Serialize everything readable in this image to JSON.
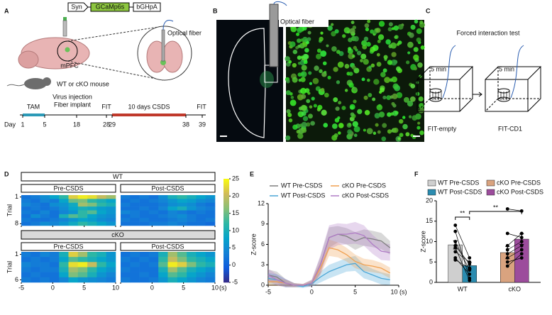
{
  "panel_labels": [
    "A",
    "B",
    "C",
    "D",
    "E",
    "F"
  ],
  "panel_a": {
    "construct": [
      "Syn",
      "GCaMp6s",
      "bGHpA"
    ],
    "fiber": "Optical fiber",
    "region": "mPFC",
    "mouse": "WT or cKO mouse",
    "procedures": [
      "Virus injection",
      "Fiber implant"
    ],
    "timeline": {
      "day_label": "Day",
      "days": [
        "1",
        "5",
        "18",
        "28",
        "29",
        "38",
        "39"
      ],
      "events": [
        "TAM",
        "FIT",
        "10 days CSDS",
        "FIT"
      ]
    }
  },
  "panel_b": {
    "fiber": "Optical fiber"
  },
  "panel_c": {
    "title": "Forced interaction test",
    "durations": [
      "5 min",
      "5 min"
    ],
    "conditions": [
      "FIT-empty",
      "FIT-CD1"
    ]
  },
  "chart_data": [
    {
      "type": "heatmap",
      "ylabel": "Trial",
      "xlim": [
        -5,
        10
      ],
      "xticks": [
        -5,
        0,
        5,
        10
      ],
      "xunit": "(s)",
      "clim": [
        -5,
        25
      ],
      "cticks": [
        -5,
        0,
        5,
        10,
        15,
        20,
        25
      ],
      "colormap": [
        "#352a87",
        "#0f5cdd",
        "#1481d6",
        "#06a4ca",
        "#2eb7a4",
        "#87bf77",
        "#d1bb59",
        "#f9fb0e"
      ],
      "groups": [
        {
          "name": "WT",
          "row_ticks": [
            1,
            8
          ],
          "panels": [
            {
              "name": "Pre-CSDS",
              "values": [
                [
                  2,
                  3,
                  5,
                  8,
                  12,
                  22,
                  24,
                  23,
                  20,
                  18
                ],
                [
                  3,
                  2,
                  4,
                  3,
                  8,
                  15,
                  16,
                  12,
                  10,
                  8
                ],
                [
                  4,
                  3,
                  2,
                  5,
                  6,
                  9,
                  18,
                  16,
                  12,
                  10
                ],
                [
                  2,
                  3,
                  2,
                  3,
                  5,
                  8,
                  10,
                  9,
                  7,
                  6
                ],
                [
                  3,
                  2,
                  4,
                  2,
                  4,
                  6,
                  12,
                  14,
                  8,
                  6
                ],
                [
                  2,
                  5,
                  3,
                  2,
                  10,
                  14,
                  12,
                  8,
                  6,
                  5
                ],
                [
                  3,
                  2,
                  2,
                  3,
                  4,
                  6,
                  8,
                  7,
                  5,
                  4
                ],
                [
                  2,
                  3,
                  5,
                  4,
                  6,
                  9,
                  12,
                  10,
                  8,
                  6
                ]
              ]
            },
            {
              "name": "Post-CSDS",
              "values": [
                [
                  3,
                  2,
                  3,
                  2,
                  5,
                  10,
                  12,
                  10,
                  8,
                  6
                ],
                [
                  2,
                  3,
                  2,
                  3,
                  4,
                  6,
                  8,
                  7,
                  5,
                  4
                ],
                [
                  3,
                  2,
                  2,
                  2,
                  3,
                  5,
                  6,
                  5,
                  3,
                  2
                ],
                [
                  2,
                  2,
                  3,
                  2,
                  4,
                  8,
                  10,
                  6,
                  4,
                  3
                ],
                [
                  4,
                  3,
                  2,
                  3,
                  2,
                  4,
                  3,
                  2,
                  3,
                  2
                ],
                [
                  2,
                  3,
                  2,
                  2,
                  3,
                  4,
                  5,
                  3,
                  2,
                  2
                ],
                [
                  3,
                  2,
                  3,
                  2,
                  2,
                  3,
                  4,
                  3,
                  2,
                  3
                ],
                [
                  2,
                  2,
                  2,
                  3,
                  3,
                  4,
                  3,
                  2,
                  2,
                  1
                ]
              ]
            }
          ]
        },
        {
          "name": "cKO",
          "row_ticks": [
            1,
            6
          ],
          "panels": [
            {
              "name": "Pre-CSDS",
              "values": [
                [
                  3,
                  2,
                  4,
                  3,
                  10,
                  22,
                  18,
                  12,
                  10,
                  6
                ],
                [
                  2,
                  3,
                  2,
                  3,
                  8,
                  14,
                  12,
                  10,
                  8,
                  6
                ],
                [
                  4,
                  3,
                  3,
                  2,
                  12,
                  23,
                  24,
                  20,
                  12,
                  8
                ],
                [
                  3,
                  2,
                  3,
                  3,
                  10,
                  18,
                  16,
                  12,
                  8,
                  6
                ],
                [
                  2,
                  3,
                  2,
                  2,
                  8,
                  16,
                  14,
                  10,
                  6,
                  4
                ],
                [
                  3,
                  2,
                  3,
                  2,
                  4,
                  8,
                  6,
                  5,
                  4,
                  3
                ]
              ]
            },
            {
              "name": "Post-CSDS",
              "values": [
                [
                  2,
                  3,
                  2,
                  3,
                  10,
                  18,
                  14,
                  10,
                  8,
                  6
                ],
                [
                  3,
                  2,
                  3,
                  2,
                  12,
                  20,
                  16,
                  12,
                  10,
                  8
                ],
                [
                  2,
                  3,
                  2,
                  3,
                  14,
                  24,
                  22,
                  16,
                  12,
                  10
                ],
                [
                  3,
                  2,
                  2,
                  2,
                  10,
                  18,
                  14,
                  10,
                  8,
                  6
                ],
                [
                  2,
                  2,
                  3,
                  2,
                  8,
                  14,
                  12,
                  8,
                  6,
                  4
                ],
                [
                  3,
                  2,
                  2,
                  3,
                  6,
                  10,
                  8,
                  6,
                  4,
                  3
                ]
              ]
            }
          ]
        }
      ]
    },
    {
      "type": "line",
      "ylabel": "Z-score",
      "x": [
        -5,
        -4,
        -3,
        -2,
        -1,
        0,
        1,
        2,
        3,
        4,
        5,
        6,
        7,
        8,
        9
      ],
      "xlim": [
        -5,
        10
      ],
      "xticks": [
        -5,
        0,
        5,
        {
          "value": 10,
          "label": "10 (s)"
        }
      ],
      "ylim": [
        0,
        12
      ],
      "yticks": [
        0,
        3,
        6,
        9,
        12
      ],
      "series": [
        {
          "name": "WT Pre-CSDS",
          "color": "#7f7f7f",
          "values": [
            1.5,
            1.2,
            0.3,
            0,
            0,
            0.3,
            3,
            7,
            7.5,
            7.2,
            6.5,
            7,
            6.8,
            6.5,
            5.5
          ],
          "error": [
            0.8,
            0.8,
            0.6,
            0.3,
            0.2,
            0.5,
            1.2,
            1.5,
            1.2,
            1.2,
            1.3,
            1.2,
            1.2,
            1.2,
            1.0
          ]
        },
        {
          "name": "WT Post-CSDS",
          "color": "#4aa6d6",
          "values": [
            1.0,
            0.8,
            0.3,
            0,
            -0.2,
            0.2,
            1.2,
            2,
            2.5,
            3,
            3.2,
            2,
            1.5,
            1,
            0.8
          ],
          "error": [
            0.8,
            0.8,
            0.6,
            0.3,
            0.2,
            0.4,
            0.8,
            1.0,
            1.0,
            1.0,
            1.1,
            1.0,
            0.9,
            0.9,
            0.8
          ]
        },
        {
          "name": "cKO Pre-CSDS",
          "color": "#f0a050",
          "values": [
            0.5,
            0.5,
            0.3,
            0,
            0,
            0.3,
            2.5,
            5.5,
            5.2,
            4.5,
            3.5,
            3,
            2.8,
            2.5,
            1.8
          ],
          "error": [
            0.6,
            0.6,
            0.5,
            0.3,
            0.2,
            0.4,
            1.0,
            1.2,
            1.1,
            1.0,
            1.0,
            0.9,
            0.9,
            0.8,
            0.8
          ]
        },
        {
          "name": "cKO Post-CSDS",
          "color": "#b07cc6",
          "values": [
            1.5,
            0.8,
            0.3,
            0,
            0,
            0.3,
            3,
            7,
            7.5,
            7.5,
            7.7,
            7.3,
            6,
            5,
            4.8
          ],
          "error": [
            0.9,
            0.8,
            0.6,
            0.3,
            0.2,
            0.5,
            1.4,
            1.8,
            1.6,
            1.5,
            1.6,
            1.5,
            1.4,
            1.3,
            1.2
          ]
        }
      ]
    },
    {
      "type": "bar",
      "ylabel": "Z-score",
      "categories": [
        "WT",
        "cKO"
      ],
      "ylim": [
        0,
        20
      ],
      "yticks": [
        0,
        5,
        10,
        15,
        20
      ],
      "annotations": [
        "**",
        "**"
      ],
      "annotation_color": "#e0301e",
      "series": [
        {
          "name": "WT Pre-CSDS",
          "color": "#cfcfcf",
          "values": [
            9.2,
            null
          ],
          "error": [
            1.0,
            null
          ],
          "points": [
            14,
            12.5,
            10,
            9,
            8.5,
            7.5,
            6,
            5.5
          ]
        },
        {
          "name": "WT Post-CSDS",
          "color": "#2b8cb0",
          "values": [
            4.1,
            null
          ],
          "error": [
            0.8,
            null
          ],
          "points": [
            6,
            1,
            3,
            4.5,
            0.5,
            5,
            2,
            3.5
          ]
        },
        {
          "name": "cKO Pre-CSDS",
          "color": "#d9a37f",
          "values": [
            null,
            7.3
          ],
          "error": [
            null,
            1.5
          ],
          "points": [
            18,
            12,
            9,
            8,
            7,
            6,
            5,
            4
          ]
        },
        {
          "name": "cKO Post-CSDS",
          "color": "#9c4c9c",
          "values": [
            null,
            10.6
          ],
          "error": [
            null,
            1.3
          ],
          "points": [
            17.5,
            11,
            12,
            10,
            9,
            8,
            6,
            7
          ]
        }
      ]
    }
  ]
}
